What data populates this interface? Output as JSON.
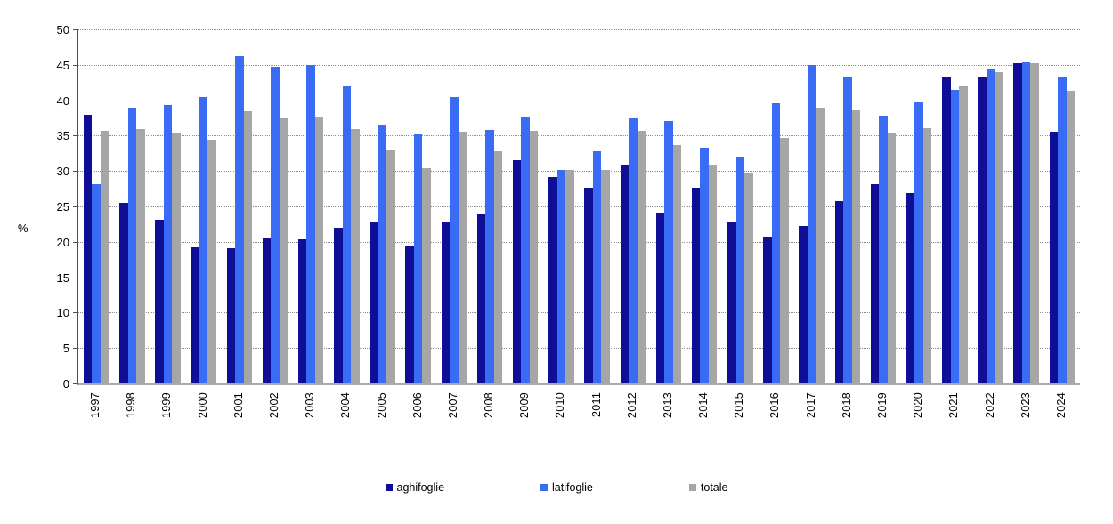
{
  "chart_data": {
    "type": "bar",
    "title": "",
    "xlabel": "",
    "ylabel": "%",
    "ylim": [
      0,
      50
    ],
    "ytick_step": 5,
    "grid": "horizontal-dotted",
    "legend_position": "bottom-center",
    "categories": [
      "1997",
      "1998",
      "1999",
      "2000",
      "2001",
      "2002",
      "2003",
      "2004",
      "2005",
      "2006",
      "2007",
      "2008",
      "2009",
      "2010",
      "2011",
      "2012",
      "2013",
      "2014",
      "2015",
      "2016",
      "2017",
      "2018",
      "2019",
      "2020",
      "2021",
      "2022",
      "2023",
      "2024"
    ],
    "series": [
      {
        "name": "aghifoglie",
        "color": "#0e0e96",
        "values": [
          38.0,
          25.5,
          23.1,
          19.2,
          19.1,
          20.5,
          20.4,
          22.0,
          22.9,
          19.4,
          22.7,
          24.0,
          31.6,
          29.1,
          27.7,
          30.9,
          24.1,
          27.7,
          22.7,
          20.7,
          22.3,
          25.7,
          28.1,
          26.9,
          43.3,
          43.2,
          45.2,
          35.6
        ]
      },
      {
        "name": "latifoglie",
        "color": "#3a6bf5",
        "values": [
          28.1,
          39.0,
          39.3,
          40.5,
          46.3,
          44.7,
          45.0,
          42.0,
          36.5,
          35.2,
          40.4,
          35.8,
          37.6,
          30.2,
          32.8,
          37.5,
          37.1,
          33.3,
          32.1,
          39.6,
          45.0,
          43.4,
          37.8,
          39.7,
          41.5,
          44.3,
          45.3,
          43.3
        ]
      },
      {
        "name": "totale",
        "color": "#a6a6a6",
        "values": [
          35.7,
          35.9,
          35.3,
          34.4,
          38.5,
          37.4,
          37.6,
          35.9,
          32.9,
          30.4,
          35.6,
          32.8,
          35.7,
          30.1,
          30.2,
          35.7,
          33.7,
          30.8,
          29.8,
          34.7,
          38.9,
          38.6,
          35.3,
          36.0,
          42.0,
          44.0,
          45.2,
          41.3
        ]
      }
    ]
  },
  "colors": {
    "gridline": "#8c8c8c",
    "y_axis_line": "#4d4d4d",
    "x_axis_line": "#a9a9a9",
    "background": "#ffffff"
  }
}
